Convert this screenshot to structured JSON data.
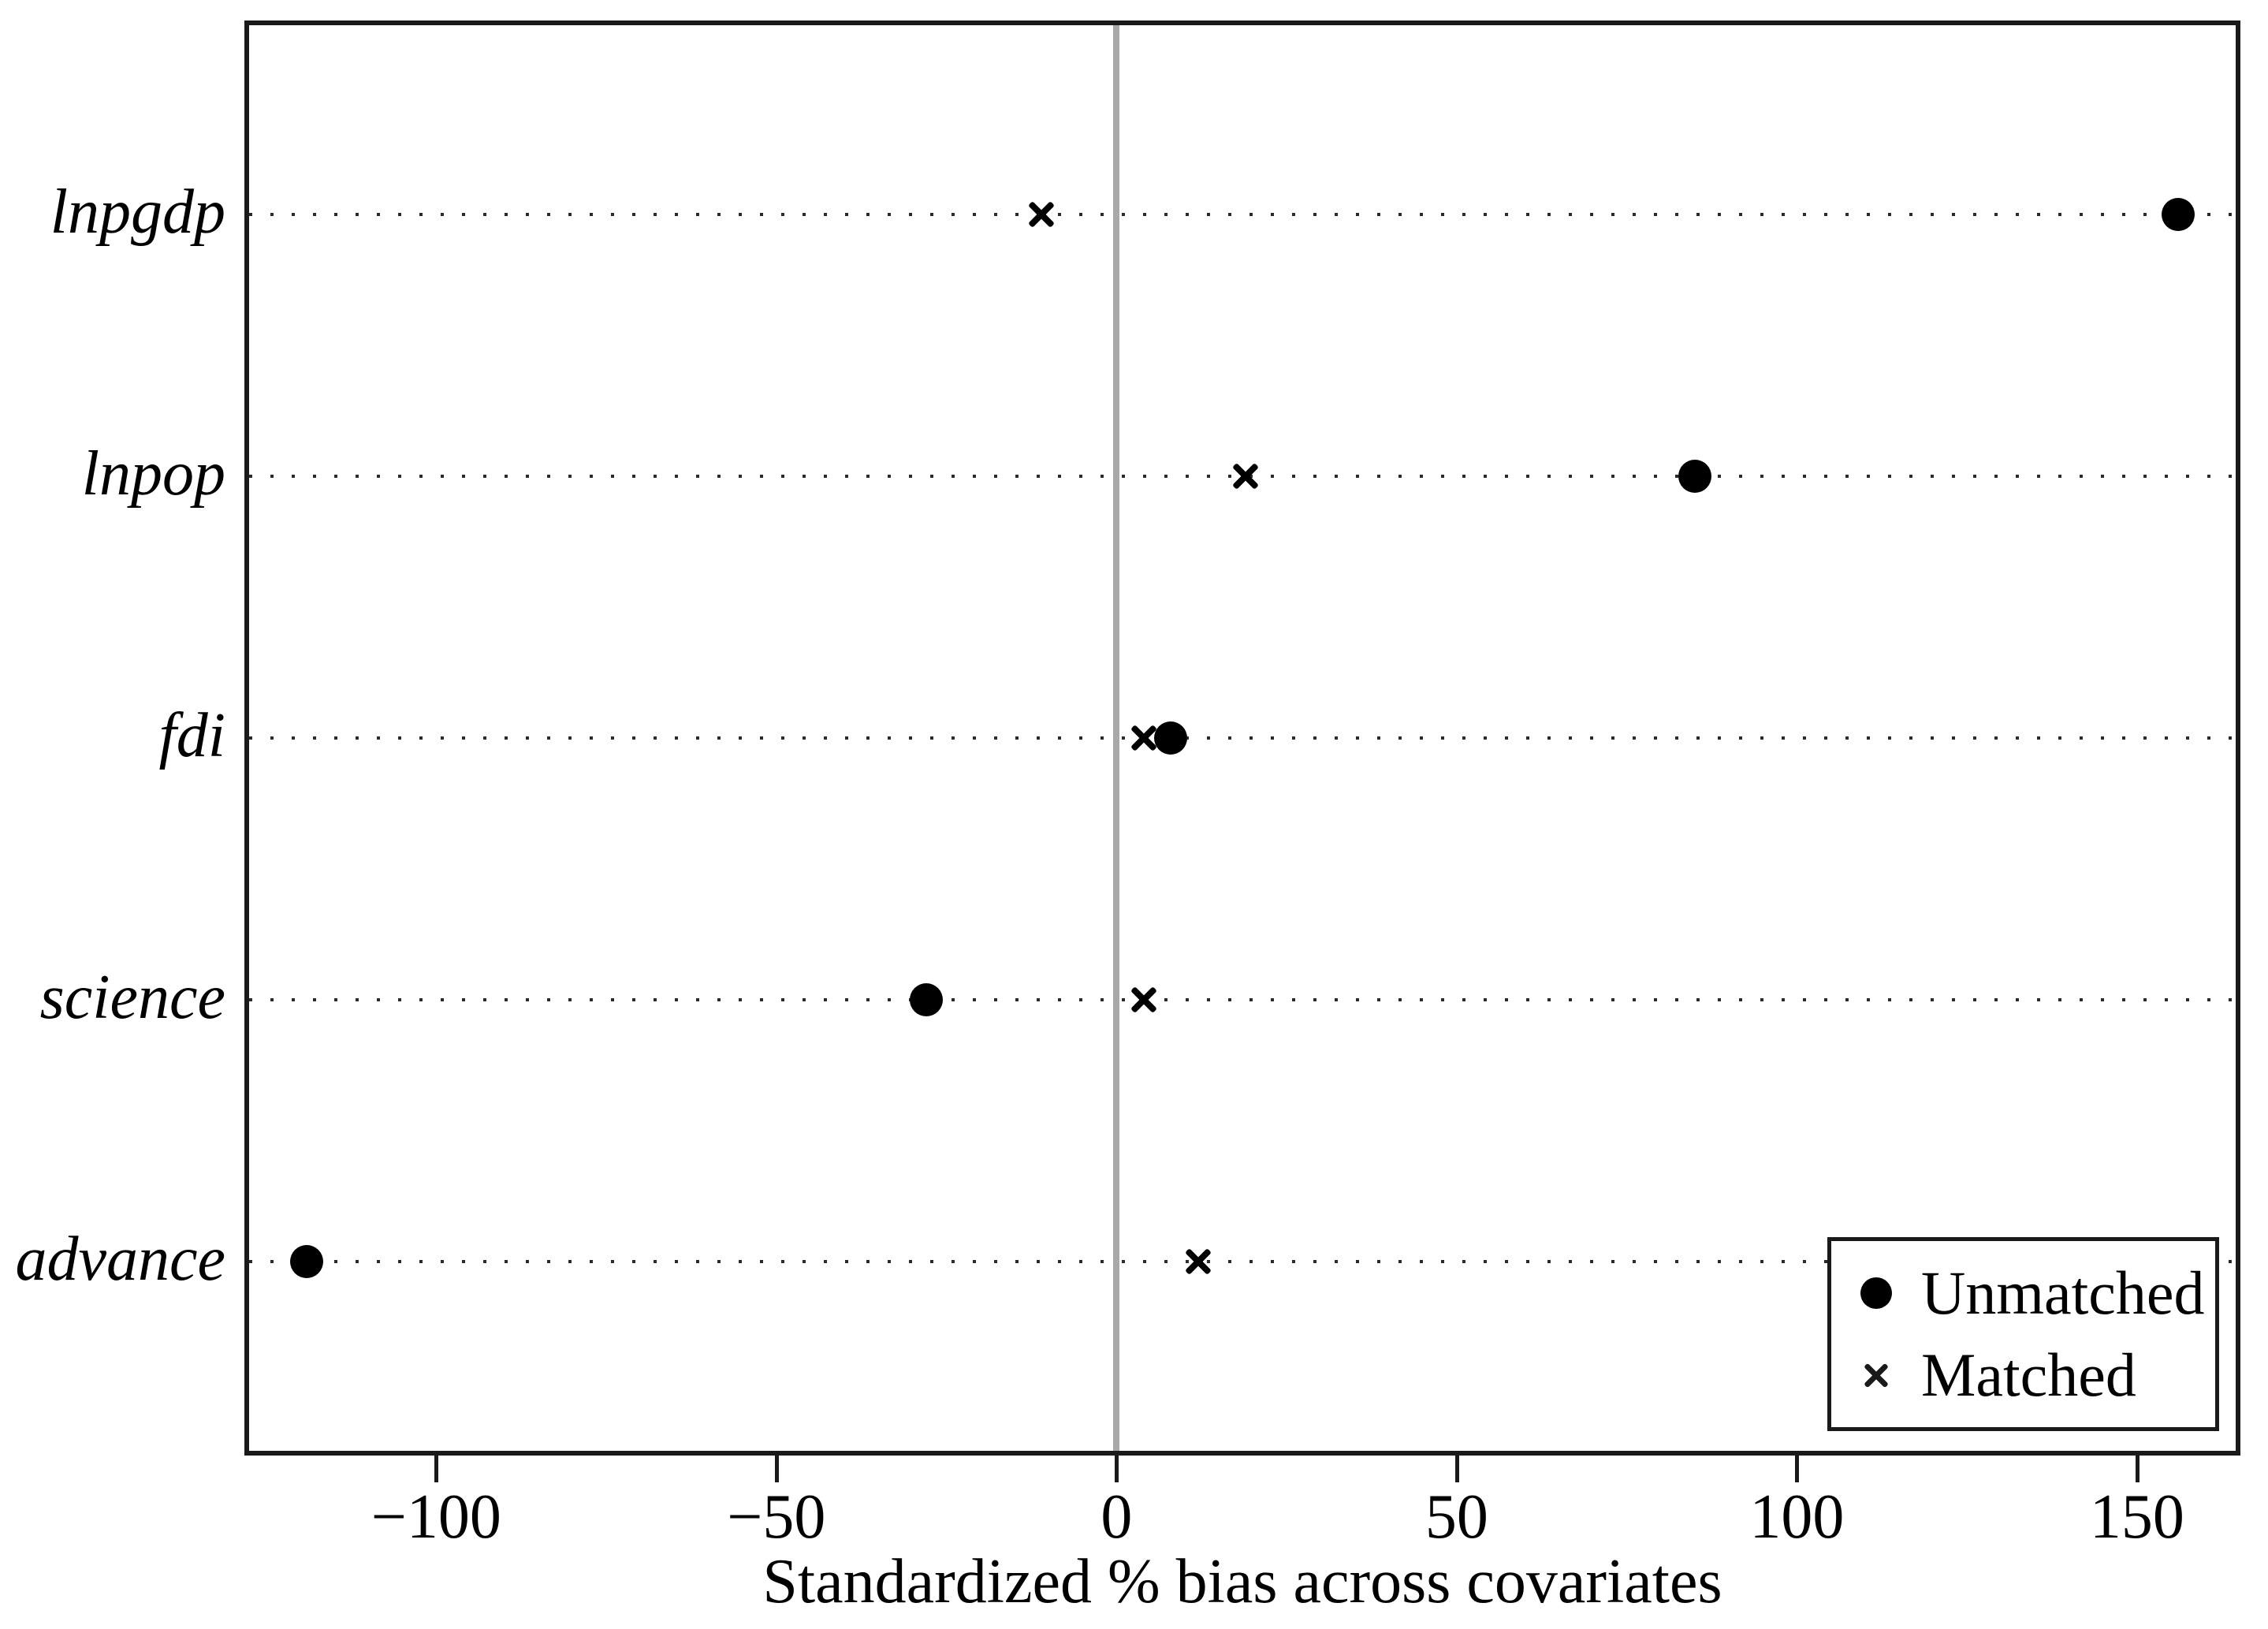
{
  "chart_data": {
    "type": "scatter",
    "subtype": "horizontal-dot-plot",
    "title": "",
    "xlabel": "Standardized % bias across covariates",
    "ylabel": "",
    "categories": [
      "lnpgdp",
      "lnpop",
      "fdi",
      "science",
      "advance"
    ],
    "series": [
      {
        "name": "Unmatched",
        "marker": "circle",
        "values": [
          156,
          85,
          8,
          -28,
          -119
        ]
      },
      {
        "name": "Matched",
        "marker": "x",
        "values": [
          -11,
          19,
          4,
          4,
          12
        ]
      }
    ],
    "x_ticks": [
      -100,
      -50,
      0,
      50,
      100,
      150
    ],
    "x_tick_labels": [
      "−100",
      "−50",
      "0",
      "50",
      "100",
      "150"
    ],
    "xlim": [
      -127.5,
      164.5
    ],
    "zero_reference_line": 0,
    "grid": "dotted horizontal gridlines per category",
    "legend_position": "bottom-right inside plot"
  },
  "legend": {
    "items": [
      {
        "label": "Unmatched",
        "marker": "circle"
      },
      {
        "label": "Matched",
        "marker": "x"
      }
    ]
  },
  "colors": {
    "marker": "#000000",
    "axis": "#1a1a1a",
    "zero_line": "#a9a9a9",
    "grid_dot": "#2b2b2b",
    "background": "#ffffff"
  }
}
